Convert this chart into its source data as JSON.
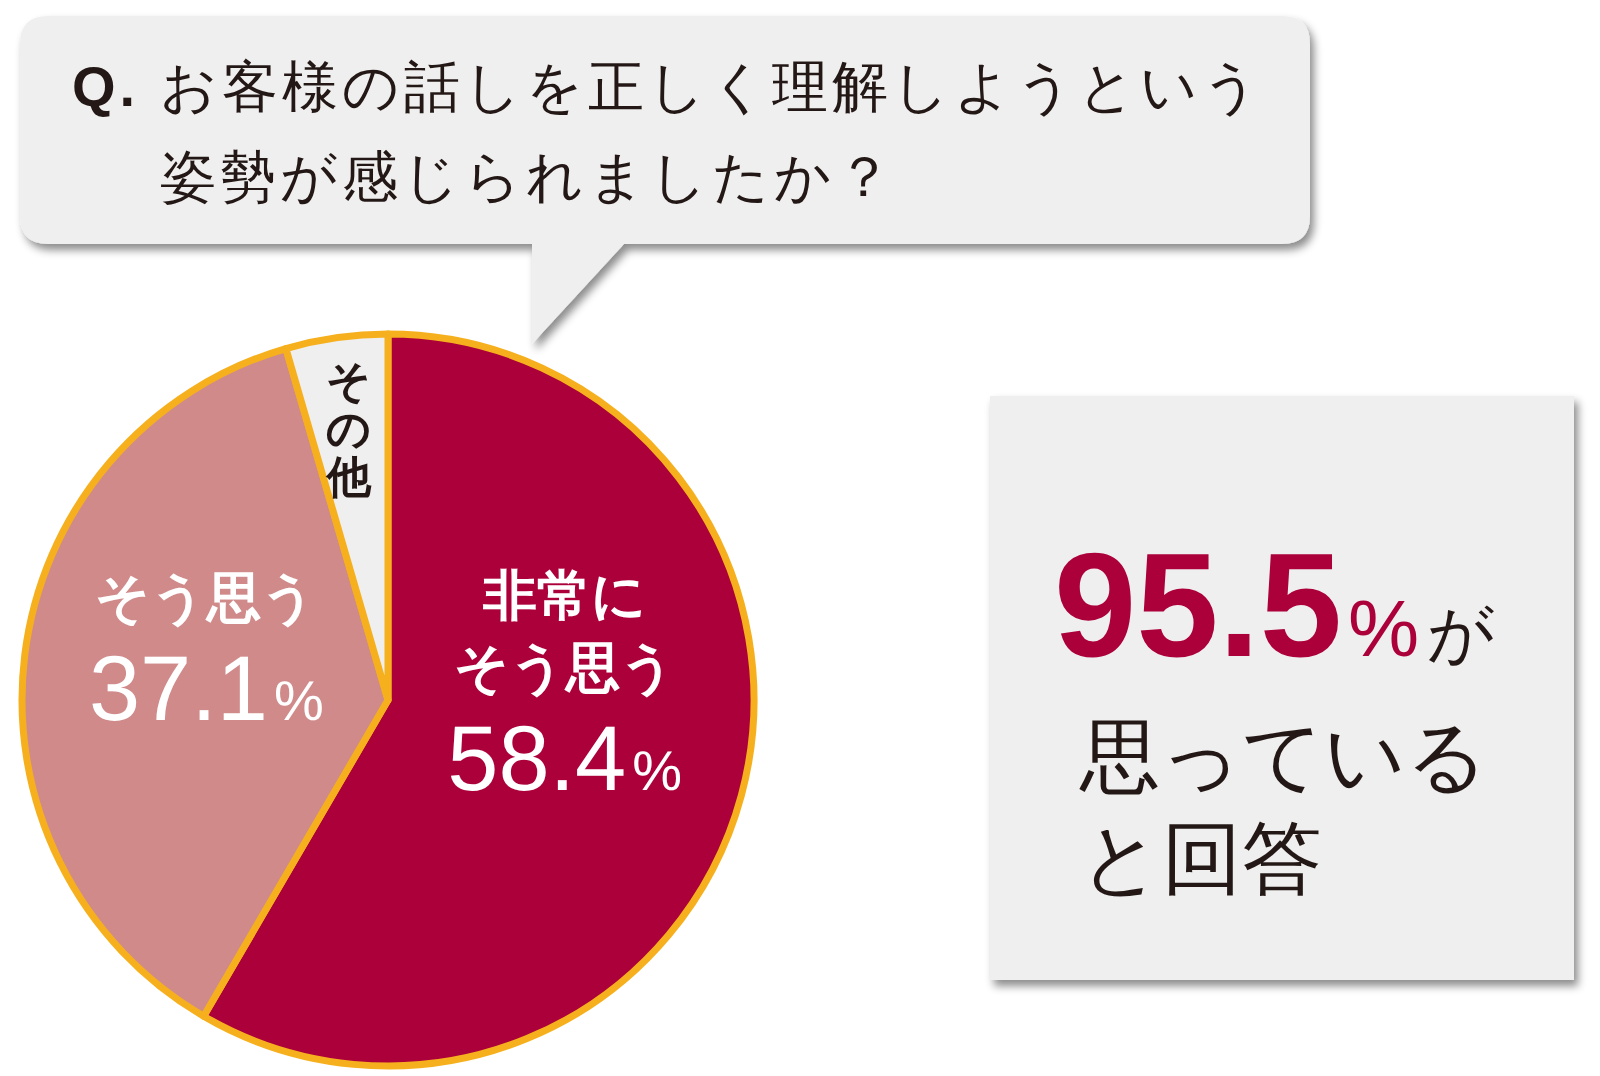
{
  "chart_data": [
    {
      "type": "pie",
      "title": "Q. お客様の話しを正しく理解しようという姿勢が感じられましたか？",
      "categories": [
        "非常にそう思う",
        "そう思う",
        "その他"
      ],
      "values": [
        58.4,
        37.1,
        4.5
      ],
      "colors": [
        "#ac003a",
        "#d08a8a",
        "#efefef"
      ],
      "value_labels": [
        "58.4%",
        "37.1%",
        null
      ]
    },
    {
      "type": "other",
      "annotations": [
        "95.5%が",
        "思っている",
        "と回答"
      ]
    }
  ]
}
